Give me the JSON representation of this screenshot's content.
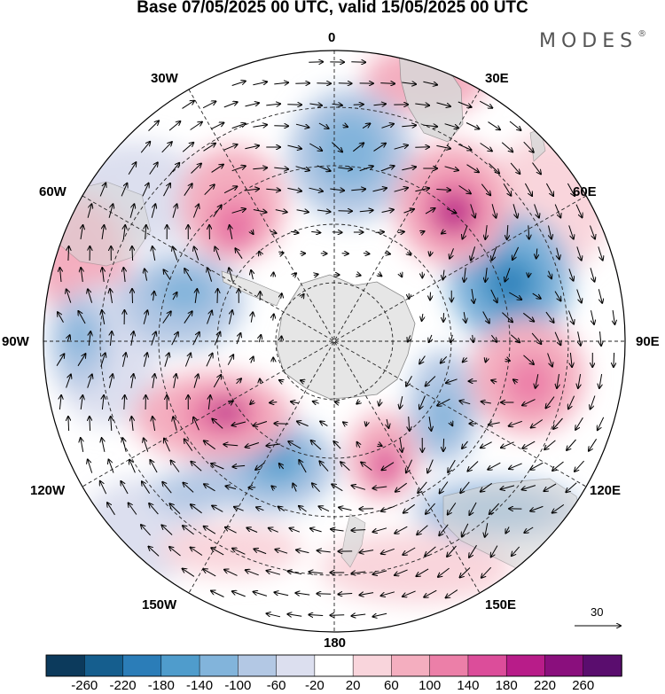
{
  "header": {
    "title": "Base 07/05/2025 00 UTC, valid 15/05/2025 00 UTC",
    "brand": "MODES",
    "brand_mark": "®"
  },
  "map": {
    "projection": "south-polar-stereographic",
    "meridian_labels": [
      "0",
      "30E",
      "60E",
      "90E",
      "120E",
      "150E",
      "180",
      "150W",
      "120W",
      "90W",
      "60W",
      "30W"
    ],
    "vector_scale_label": "30"
  },
  "legend": {
    "ticks": [
      "-260",
      "-220",
      "-180",
      "-140",
      "-100",
      "-60",
      "-20",
      "20",
      "60",
      "100",
      "140",
      "180",
      "220",
      "260"
    ],
    "colors": [
      "#0c3a5c",
      "#155e8e",
      "#2b7db8",
      "#4f9ccc",
      "#82b4db",
      "#b3c8e4",
      "#dcdfef",
      "#ffffff",
      "#f9d5dc",
      "#f4aebf",
      "#ec7fa8",
      "#dc4d9a",
      "#b81c89",
      "#8a0f7d",
      "#5a0d6e"
    ]
  },
  "colors": {
    "land": "#e6e6e6",
    "grid": "#222222",
    "negative": "#2b7db8",
    "positive": "#dc4d9a"
  }
}
